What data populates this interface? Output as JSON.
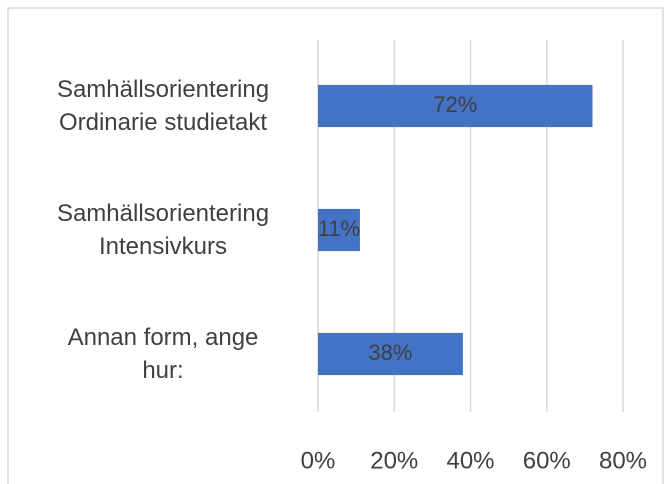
{
  "chart_data": {
    "type": "bar",
    "orientation": "horizontal",
    "categories": [
      "Samhällsorientering\nOrdinarie studietakt",
      "Samhällsorientering\nIntensivkurs",
      "Annan form, ange\nhur:"
    ],
    "values": [
      72,
      11,
      38
    ],
    "value_labels": [
      "72%",
      "11%",
      "38%"
    ],
    "color": "#4472c4",
    "xlim": [
      0,
      80
    ],
    "xticks": [
      {
        "value": 0,
        "label": "0%"
      },
      {
        "value": 20,
        "label": "20%"
      },
      {
        "value": 40,
        "label": "40%"
      },
      {
        "value": 60,
        "label": "60%"
      },
      {
        "value": 80,
        "label": "80%"
      }
    ],
    "grid": true
  }
}
